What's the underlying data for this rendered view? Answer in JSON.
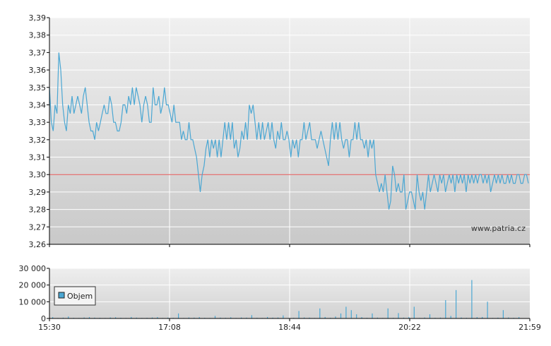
{
  "watermark": "www.patria.cz",
  "chart_data": [
    {
      "type": "line",
      "ylim": [
        3.26,
        3.39
      ],
      "y_ticks": [
        "3,39",
        "3,38",
        "3,37",
        "3,36",
        "3,35",
        "3,34",
        "3,33",
        "3,32",
        "3,31",
        "3,30",
        "3,29",
        "3,28",
        "3,27",
        "3,26"
      ],
      "x_tick_labels": [
        "15:30",
        "17:08",
        "18:44",
        "20:22",
        "21:59"
      ],
      "reference_line": 3.3,
      "grid": true,
      "colors": {
        "line": "#4ba7d3",
        "reference": "#e05050",
        "grid": "#ffffff",
        "bg_top": "#f0f0f0",
        "bg_bottom": "#c9c9c9"
      },
      "series": [
        {
          "values": [
            3.35,
            3.33,
            3.325,
            3.34,
            3.335,
            3.37,
            3.36,
            3.34,
            3.33,
            3.325,
            3.34,
            3.335,
            3.345,
            3.335,
            3.34,
            3.345,
            3.34,
            3.335,
            3.345,
            3.35,
            3.34,
            3.33,
            3.325,
            3.325,
            3.32,
            3.33,
            3.325,
            3.33,
            3.335,
            3.34,
            3.335,
            3.335,
            3.345,
            3.34,
            3.33,
            3.33,
            3.325,
            3.325,
            3.33,
            3.34,
            3.34,
            3.335,
            3.345,
            3.34,
            3.35,
            3.34,
            3.35,
            3.345,
            3.34,
            3.33,
            3.34,
            3.345,
            3.34,
            3.33,
            3.33,
            3.35,
            3.34,
            3.34,
            3.345,
            3.335,
            3.34,
            3.35,
            3.34,
            3.34,
            3.335,
            3.33,
            3.34,
            3.33,
            3.33,
            3.33,
            3.32,
            3.325,
            3.32,
            3.32,
            3.33,
            3.32,
            3.32,
            3.315,
            3.31,
            3.3,
            3.29,
            3.3,
            3.305,
            3.315,
            3.32,
            3.31,
            3.32,
            3.315,
            3.32,
            3.31,
            3.32,
            3.31,
            3.32,
            3.33,
            3.32,
            3.33,
            3.32,
            3.33,
            3.315,
            3.32,
            3.31,
            3.315,
            3.325,
            3.32,
            3.33,
            3.32,
            3.34,
            3.335,
            3.34,
            3.33,
            3.32,
            3.33,
            3.32,
            3.33,
            3.32,
            3.325,
            3.33,
            3.32,
            3.33,
            3.32,
            3.315,
            3.325,
            3.32,
            3.33,
            3.32,
            3.32,
            3.325,
            3.32,
            3.31,
            3.32,
            3.315,
            3.32,
            3.31,
            3.32,
            3.32,
            3.33,
            3.32,
            3.325,
            3.33,
            3.32,
            3.32,
            3.32,
            3.315,
            3.32,
            3.325,
            3.32,
            3.315,
            3.31,
            3.305,
            3.32,
            3.33,
            3.32,
            3.33,
            3.32,
            3.33,
            3.32,
            3.315,
            3.32,
            3.32,
            3.31,
            3.32,
            3.32,
            3.33,
            3.32,
            3.33,
            3.32,
            3.32,
            3.315,
            3.32,
            3.31,
            3.32,
            3.315,
            3.32,
            3.3,
            3.295,
            3.29,
            3.295,
            3.29,
            3.3,
            3.29,
            3.28,
            3.285,
            3.305,
            3.3,
            3.29,
            3.295,
            3.29,
            3.29,
            3.3,
            3.28,
            3.285,
            3.29,
            3.29,
            3.285,
            3.28,
            3.3,
            3.29,
            3.285,
            3.29,
            3.28,
            3.29,
            3.3,
            3.29,
            3.295,
            3.3,
            3.295,
            3.29,
            3.3,
            3.295,
            3.3,
            3.29,
            3.295,
            3.3,
            3.295,
            3.3,
            3.29,
            3.3,
            3.295,
            3.3,
            3.295,
            3.3,
            3.29,
            3.3,
            3.295,
            3.3,
            3.295,
            3.3,
            3.295,
            3.3,
            3.3,
            3.295,
            3.3,
            3.295,
            3.3,
            3.29,
            3.295,
            3.3,
            3.295,
            3.3,
            3.295,
            3.3,
            3.295,
            3.295,
            3.3,
            3.295,
            3.3,
            3.295,
            3.295,
            3.3,
            3.3,
            3.295,
            3.295,
            3.3,
            3.3,
            3.295
          ]
        }
      ]
    },
    {
      "type": "bar",
      "ylim": [
        0,
        30000
      ],
      "y_ticks": [
        "30 000",
        "20 000",
        "10 000",
        "0"
      ],
      "x_tick_labels": [
        "15:30",
        "17:08",
        "18:44",
        "20:22",
        "21:59"
      ],
      "legend": "Objem",
      "legend_placement": "left",
      "grid": true,
      "colors": {
        "bar": "#4ba7d3",
        "legend_swatch": "#4ba7d3"
      },
      "series": [
        {
          "name": "Objem",
          "values": [
            800,
            300,
            500,
            1200,
            400,
            300,
            600,
            800,
            500,
            400,
            300,
            600,
            700,
            400,
            300,
            900,
            500,
            300,
            400,
            600,
            800,
            300,
            500,
            400,
            3000,
            300,
            600,
            500,
            800,
            400,
            300,
            1500,
            500,
            400,
            700,
            300,
            600,
            500,
            2000,
            400,
            300,
            900,
            500,
            600,
            1800,
            300,
            400,
            4500,
            600,
            500,
            300,
            6000,
            900,
            400,
            1200,
            3000,
            7000,
            5000,
            2500,
            800,
            400,
            3000,
            500,
            300,
            6000,
            400,
            3200,
            500,
            900,
            7000,
            300,
            600,
            2500,
            400,
            500,
            11000,
            1500,
            17000,
            600,
            400,
            23000,
            800,
            900,
            10000,
            300,
            500,
            5000,
            600,
            400,
            800
          ]
        }
      ]
    }
  ]
}
